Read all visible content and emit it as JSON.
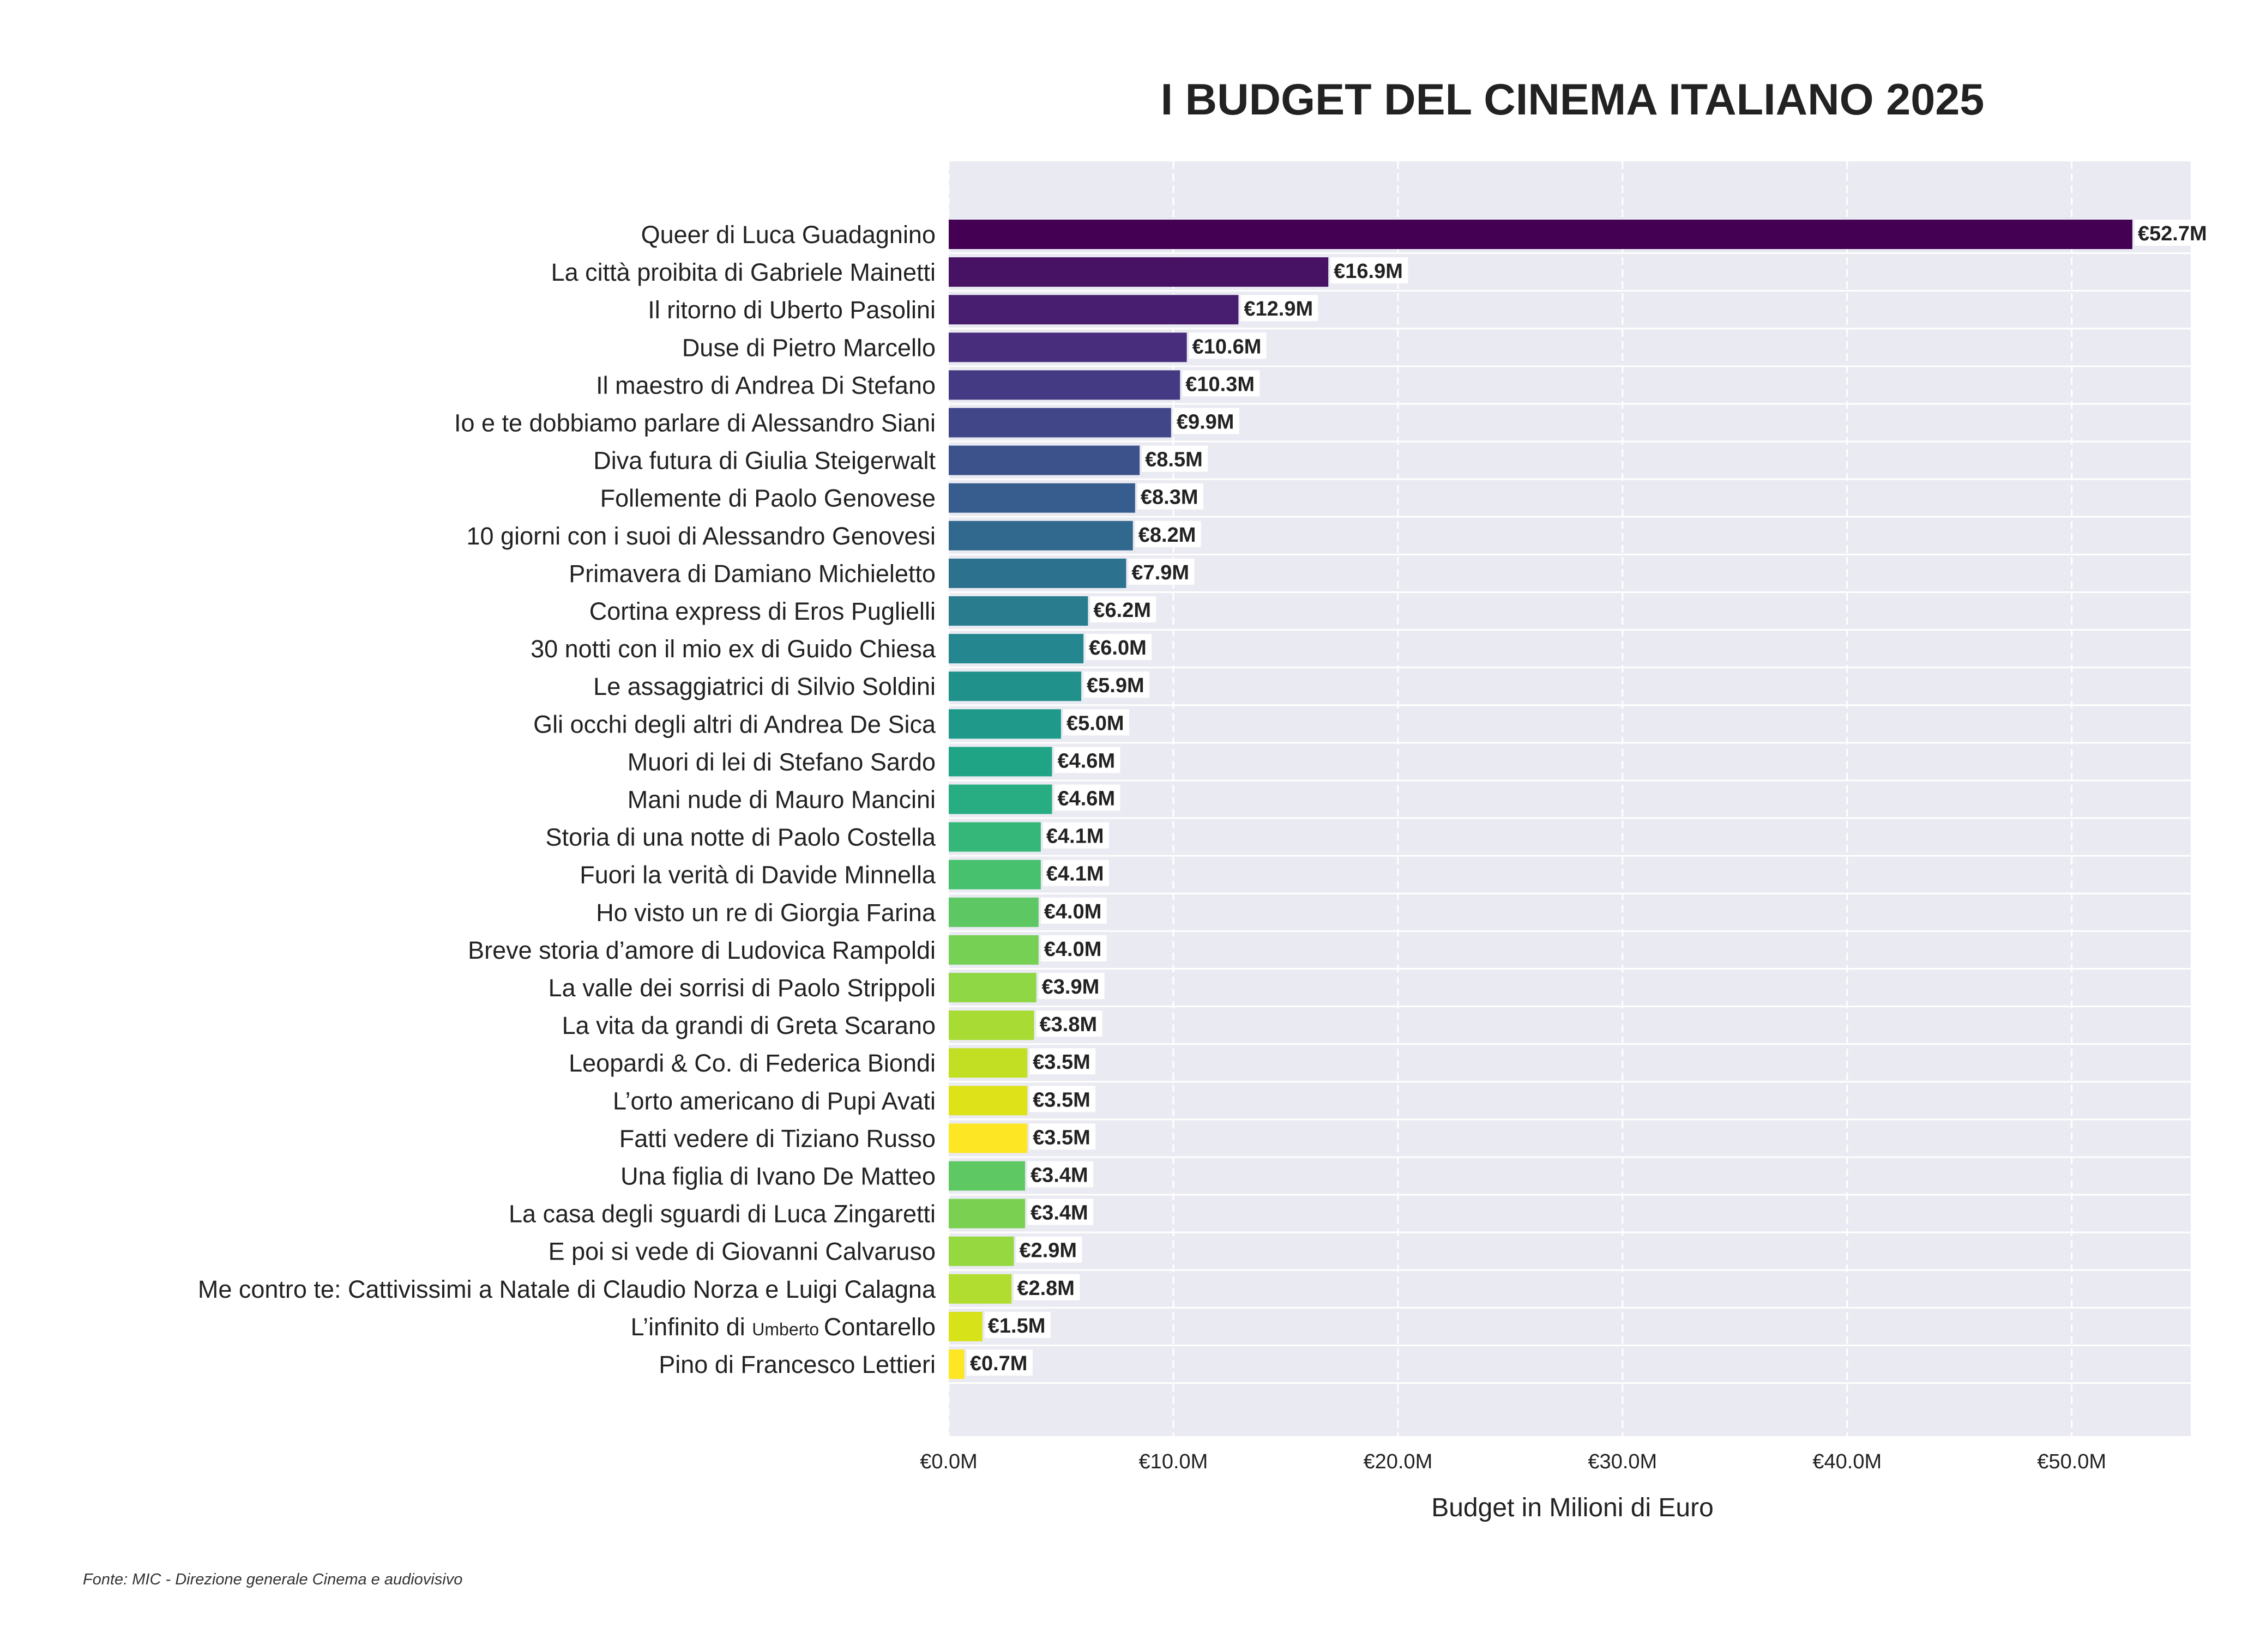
{
  "colors": {
    "plot_background": "#eaeaf2",
    "grid": "#ffffff",
    "text": "#222222",
    "label_box": "#ffffff"
  },
  "chart_data": {
    "type": "bar",
    "orientation": "horizontal",
    "title": "I BUDGET DEL CINEMA ITALIANO 2025",
    "xlabel": "Budget in Milioni di Euro",
    "ylabel": "",
    "xlim": [
      0,
      55.3
    ],
    "xticks": [
      0,
      10,
      20,
      30,
      40,
      50
    ],
    "xtick_labels": [
      "€0.0M",
      "€10.0M",
      "€20.0M",
      "€30.0M",
      "€40.0M",
      "€50.0M"
    ],
    "grid": "vertical dashed",
    "colormap": "viridis",
    "categories": [
      "Queer di Luca Guadagnino",
      "La città proibita di Gabriele Mainetti",
      "Il ritorno di Uberto Pasolini",
      "Duse di Pietro Marcello",
      "Il maestro di Andrea Di Stefano",
      "Io e te dobbiamo parlare di Alessandro Siani",
      "Diva futura di Giulia Steigerwalt",
      "Follemente di Paolo Genovese",
      "10 giorni con i suoi di Alessandro Genovesi",
      "Primavera di Damiano Michieletto",
      "Cortina express di Eros Puglielli",
      "30 notti con il mio ex di Guido Chiesa",
      "Le assaggiatrici di Silvio Soldini",
      "Gli occhi degli altri di Andrea De Sica",
      "Muori di lei di Stefano Sardo",
      "Mani nude di Mauro Mancini",
      "Storia di una notte di Paolo Costella",
      "Fuori la verità di Davide Minnella",
      "Ho visto un re di Giorgia Farina",
      "Breve storia d’amore di Ludovica Rampoldi",
      "La valle dei sorrisi di Paolo Strippoli",
      "La vita da grandi di Greta Scarano",
      "Leopardi & Co. di Federica Biondi",
      "L’orto americano di Pupi Avati",
      "Fatti vedere di Tiziano Russo",
      "Una figlia di Ivano De Matteo",
      "La casa degli sguardi di Luca Zingaretti",
      "E poi si vede di Giovanni Calvaruso",
      "Me contro te: Cattivissimi a Natale di Claudio Norza e Luigi Calagna",
      "L’infinito di",
      "Pino di Francesco Lettieri"
    ],
    "special_label": {
      "index": 29,
      "parts": [
        "L’infinito di",
        "Umberto",
        "Contarello"
      ]
    },
    "values": [
      52.7,
      16.9,
      12.9,
      10.6,
      10.3,
      9.9,
      8.5,
      8.3,
      8.2,
      7.9,
      6.2,
      6.0,
      5.9,
      5.0,
      4.6,
      4.6,
      4.1,
      4.1,
      4.0,
      4.0,
      3.9,
      3.8,
      3.5,
      3.5,
      3.5,
      3.4,
      3.4,
      2.9,
      2.8,
      1.5,
      0.7
    ],
    "value_labels": [
      "€52.7M",
      "€16.9M",
      "€12.9M",
      "€10.6M",
      "€10.3M",
      "€9.9M",
      "€8.5M",
      "€8.3M",
      "€8.2M",
      "€7.9M",
      "€6.2M",
      "€6.0M",
      "€5.9M",
      "€5.0M",
      "€4.6M",
      "€4.6M",
      "€4.1M",
      "€4.1M",
      "€4.0M",
      "€4.0M",
      "€3.9M",
      "€3.8M",
      "€3.5M",
      "€3.5M",
      "€3.5M",
      "€3.4M",
      "€3.4M",
      "€2.9M",
      "€2.8M",
      "€1.5M",
      "€0.7M"
    ],
    "bar_colors": [
      "#440154",
      "#471164",
      "#481f70",
      "#472d7b",
      "#443983",
      "#404688",
      "#3b528b",
      "#365d8d",
      "#31688e",
      "#2c728e",
      "#287c8e",
      "#24868e",
      "#21918c",
      "#1f9a8a",
      "#20a486",
      "#27ad81",
      "#35b779",
      "#47c16e",
      "#5dc863",
      "#75d054",
      "#8fd744",
      "#a8db34",
      "#c2df23",
      "#dde318",
      "#fde725",
      "#5ec962",
      "#7ad151",
      "#95d840",
      "#b0dd2f",
      "#d8e219",
      "#fde725"
    ],
    "source": "Fonte: MIC - Direzione generale Cinema e audiovisivo"
  }
}
